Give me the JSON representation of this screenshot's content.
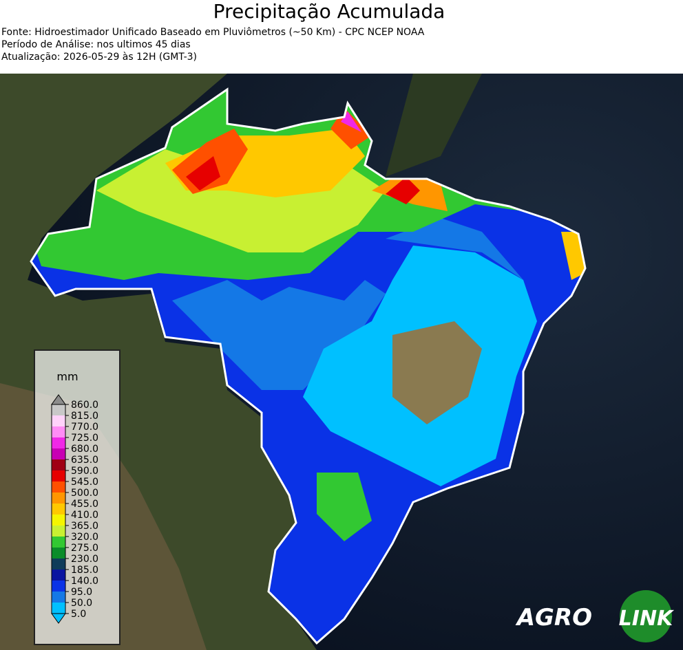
{
  "header": {
    "title": "Precipitação Acumulada",
    "lines": [
      "Fonte: Hidroestimador Unificado Baseado em Pluviômetros (~50 Km) - CPC NCEP NOAA",
      "Período de Análise: nos ultimos 45 dias",
      "Atualização: 2026-05-29 às 12H (GMT-3)"
    ]
  },
  "colorbar": {
    "unit": "mm",
    "levels": [
      {
        "value": 5,
        "label": "5.0",
        "color": "#00c0ff"
      },
      {
        "value": 50,
        "label": "50.0",
        "color": "#1478e6"
      },
      {
        "value": 95,
        "label": "95.0",
        "color": "#0a32e6"
      },
      {
        "value": 140,
        "label": "140.0",
        "color": "#0a14a0"
      },
      {
        "value": 185,
        "label": "185.0",
        "color": "#0f3c5a"
      },
      {
        "value": 230,
        "label": "230.0",
        "color": "#0a8c2a"
      },
      {
        "value": 275,
        "label": "275.0",
        "color": "#32c832"
      },
      {
        "value": 320,
        "label": "320.0",
        "color": "#c8f032"
      },
      {
        "value": 365,
        "label": "365.0",
        "color": "#f5f500"
      },
      {
        "value": 410,
        "label": "410.0",
        "color": "#ffc800"
      },
      {
        "value": 455,
        "label": "455.0",
        "color": "#ff9600"
      },
      {
        "value": 500,
        "label": "500.0",
        "color": "#ff5000"
      },
      {
        "value": 545,
        "label": "545.0",
        "color": "#e60000"
      },
      {
        "value": 590,
        "label": "590.0",
        "color": "#a00014"
      },
      {
        "value": 635,
        "label": "635.0",
        "color": "#c800b4"
      },
      {
        "value": 680,
        "label": "680.0",
        "color": "#f028e6"
      },
      {
        "value": 725,
        "label": "725.0",
        "color": "#ff8cf5"
      },
      {
        "value": 770,
        "label": "770.0",
        "color": "#ffd2fa"
      },
      {
        "value": 815,
        "label": "815.0",
        "color": "#c8c8c8"
      },
      {
        "value": 860,
        "label": "860.0",
        "color": "#8c8c8c"
      }
    ]
  },
  "logo": {
    "left": "AGRO",
    "right": "LINK"
  }
}
